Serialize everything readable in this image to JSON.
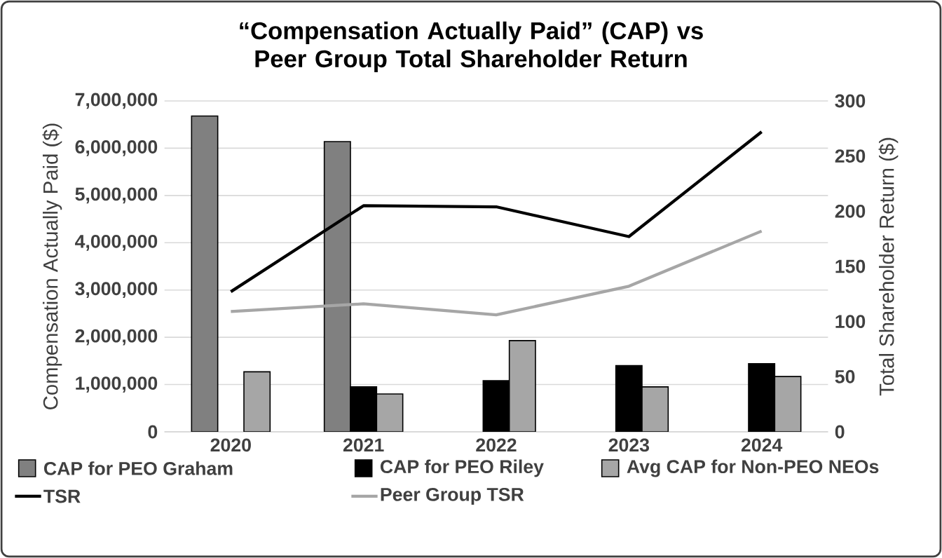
{
  "chart_data": {
    "type": "bar",
    "title": "“Compensation Actually Paid” (CAP) vs Peer Group Total Shareholder Return",
    "ylabel": "Compensation Actually Paid ($)",
    "y2label": "Total Shareholder Return ($)",
    "categories": [
      "2020",
      "2021",
      "2022",
      "2023",
      "2024"
    ],
    "series": [
      {
        "name": "CAP for PEO Graham",
        "color": "#808080",
        "values": [
          6680000,
          6140000,
          null,
          null,
          null
        ]
      },
      {
        "name": "CAP for PEO Riley",
        "color": "#000000",
        "values": [
          null,
          950000,
          1080000,
          1400000,
          1440000
        ]
      },
      {
        "name": "Avg CAP for Non-PEO NEOs",
        "color": "#a6a6a6",
        "values": [
          1270000,
          800000,
          1930000,
          950000,
          1170000
        ]
      },
      {
        "name": "TSR",
        "type": "line",
        "axis": "y2",
        "color": "#000000",
        "values": [
          127,
          205,
          204,
          177,
          272
        ]
      },
      {
        "name": "Peer Group TSR",
        "type": "line",
        "axis": "y2",
        "color": "#a6a6a6",
        "values": [
          109,
          116,
          106,
          132,
          182
        ]
      }
    ],
    "ylim": [
      0,
      7000000
    ],
    "yticks": [
      {
        "value": 0,
        "label": "0"
      },
      {
        "value": 1000000,
        "label": "1,000,000"
      },
      {
        "value": 2000000,
        "label": "2,000,000"
      },
      {
        "value": 3000000,
        "label": "3,000,000"
      },
      {
        "value": 4000000,
        "label": "4,000,000"
      },
      {
        "value": 5000000,
        "label": "5,000,000"
      },
      {
        "value": 6000000,
        "label": "6,000,000"
      },
      {
        "value": 7000000,
        "label": "7,000,000"
      }
    ],
    "y2lim": [
      0,
      300
    ],
    "y2ticks": [
      0,
      50,
      100,
      150,
      200,
      250,
      300
    ],
    "grid": "y",
    "legend": "bottom",
    "marker": "none",
    "line_style": "solid"
  }
}
